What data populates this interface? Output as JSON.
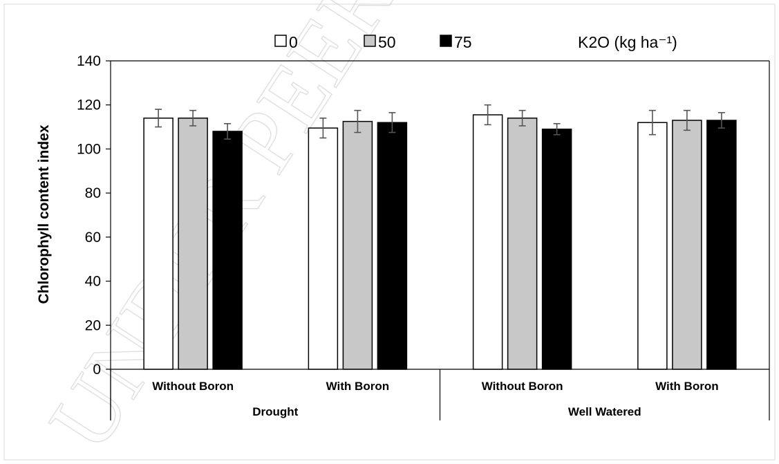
{
  "chart_data": {
    "type": "bar",
    "ylabel": "Chlorophyll content index",
    "ylim": [
      0,
      140
    ],
    "yticks": [
      0,
      20,
      40,
      60,
      80,
      100,
      120,
      140
    ],
    "categories": [
      "Without Boron",
      "With Boron",
      "Without Boron",
      "With Boron"
    ],
    "groups": [
      "Drought",
      "Well Watered"
    ],
    "legend_title": "K2O (kg ha⁻¹)",
    "legend_placement": "top",
    "grid": false,
    "series": [
      {
        "name": "0",
        "color": "#ffffff",
        "values": [
          114,
          109.5,
          115.5,
          112
        ],
        "errors": [
          4,
          4.5,
          4.5,
          5.5
        ]
      },
      {
        "name": "50",
        "color": "#c8c8c8",
        "values": [
          114,
          112.5,
          114,
          113
        ],
        "errors": [
          3.5,
          5,
          3.5,
          4.5
        ]
      },
      {
        "name": "75",
        "color": "#000000",
        "values": [
          108,
          112,
          109,
          113
        ],
        "errors": [
          3.5,
          4.5,
          2.5,
          3.5
        ]
      }
    ]
  },
  "watermark": "UNDER PEER REVIEW"
}
